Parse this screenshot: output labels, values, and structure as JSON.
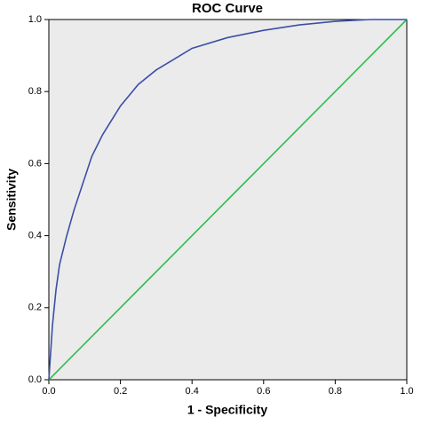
{
  "chart_data": {
    "type": "line",
    "title": "ROC Curve",
    "x_label": "1 - Specificity",
    "y_label": "Sensitivity",
    "x": [
      0,
      0.01,
      0.02,
      0.03,
      0.05,
      0.07,
      0.1,
      0.12,
      0.15,
      0.2,
      0.25,
      0.3,
      0.35,
      0.4,
      0.5,
      0.6,
      0.7,
      0.8,
      0.9,
      1
    ],
    "series": [
      {
        "color": "#3b4fa8",
        "values": [
          0,
          0.15,
          0.25,
          0.32,
          0.4,
          0.47,
          0.56,
          0.62,
          0.68,
          0.76,
          0.82,
          0.86,
          0.89,
          0.92,
          0.95,
          0.97,
          0.985,
          0.995,
          1,
          1
        ]
      },
      {
        "color": "#2ebd4e",
        "values": [
          0,
          0.01,
          0.02,
          0.03,
          0.05,
          0.07,
          0.1,
          0.12,
          0.15,
          0.2,
          0.25,
          0.3,
          0.35,
          0.4,
          0.5,
          0.6,
          0.7,
          0.8,
          0.9,
          1
        ]
      }
    ],
    "xlim": [
      0,
      1
    ],
    "ylim": [
      0,
      1
    ],
    "xticks": [
      {
        "value": 0,
        "label": "0.0"
      },
      {
        "value": 0.2,
        "label": "0.2"
      },
      {
        "value": 0.4,
        "label": "0.4"
      },
      {
        "value": 0.6,
        "label": "0.6"
      },
      {
        "value": 0.8,
        "label": "0.8"
      },
      {
        "value": 1,
        "label": "1.0"
      }
    ],
    "yticks": [
      {
        "value": 0,
        "label": "0.0"
      },
      {
        "value": 0.2,
        "label": "0.2"
      },
      {
        "value": 0.4,
        "label": "0.4"
      },
      {
        "value": 0.6,
        "label": "0.6"
      },
      {
        "value": 0.8,
        "label": "0.8"
      },
      {
        "value": 1,
        "label": "1.0"
      }
    ],
    "plot_background": "#ebebeb"
  }
}
